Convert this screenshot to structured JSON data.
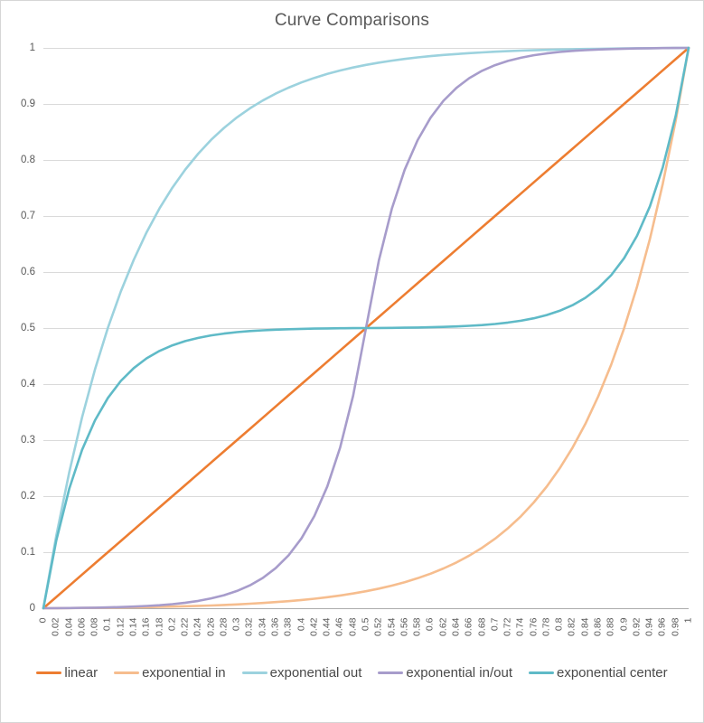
{
  "title": "Curve Comparisons",
  "axis_color": "#acacac",
  "gridline_color": "#dadada",
  "label_color": "#595959",
  "chart_data": {
    "type": "line",
    "title": "Curve Comparisons",
    "xlabel": "",
    "ylabel": "",
    "xlim": [
      0,
      1
    ],
    "ylim": [
      0,
      1
    ],
    "grid": "horizontal",
    "legend_position": "bottom",
    "x": [
      0,
      0.02,
      0.04,
      0.06,
      0.08,
      0.1,
      0.12,
      0.14,
      0.16,
      0.18,
      0.2,
      0.22,
      0.24,
      0.26,
      0.28,
      0.3,
      0.32,
      0.34,
      0.36,
      0.38,
      0.4,
      0.42,
      0.44,
      0.46,
      0.48,
      0.5,
      0.52,
      0.54,
      0.56,
      0.58,
      0.6,
      0.62,
      0.64,
      0.66,
      0.68,
      0.7,
      0.72,
      0.74,
      0.76,
      0.78,
      0.8,
      0.82,
      0.84,
      0.86,
      0.88,
      0.9,
      0.92,
      0.94,
      0.96,
      0.98,
      1
    ],
    "x_tick_labels": [
      "0",
      "0.02",
      "0.04",
      "0.06",
      "0.08",
      "0.1",
      "0.12",
      "0.14",
      "0.16",
      "0.18",
      "0.2",
      "0.22",
      "0.24",
      "0.26",
      "0.28",
      "0.3",
      "0.32",
      "0.34",
      "0.36",
      "0.38",
      "0.4",
      "0.42",
      "0.44",
      "0.46",
      "0.48",
      "0.5",
      "0.52",
      "0.54",
      "0.56",
      "0.58",
      "0.6",
      "0.62",
      "0.64",
      "0.66",
      "0.68",
      "0.7",
      "0.72",
      "0.74",
      "0.76",
      "0.78",
      "0.8",
      "0.82",
      "0.84",
      "0.86",
      "0.88",
      "0.9",
      "0.92",
      "0.94",
      "0.96",
      "0.98",
      "1"
    ],
    "y_tick_labels": [
      "1",
      "0.9",
      "0.8",
      "0.7",
      "0.6",
      "0.5",
      "0.4",
      "0.3",
      "0.2",
      "0.1",
      "0"
    ],
    "series": [
      {
        "name": "linear",
        "color": "#ED7D31",
        "values": [
          0,
          0.02,
          0.04,
          0.06,
          0.08,
          0.1,
          0.12,
          0.14,
          0.16,
          0.18,
          0.2,
          0.22,
          0.24,
          0.26,
          0.28,
          0.3,
          0.32,
          0.34,
          0.36,
          0.38,
          0.4,
          0.42,
          0.44,
          0.46,
          0.48,
          0.5,
          0.52,
          0.54,
          0.56,
          0.58,
          0.6,
          0.62,
          0.64,
          0.66,
          0.68,
          0.7,
          0.72,
          0.74,
          0.76,
          0.78,
          0.8,
          0.82,
          0.84,
          0.86,
          0.88,
          0.9,
          0.92,
          0.94,
          0.96,
          0.98,
          1
        ]
      },
      {
        "name": "exponential in",
        "color": "#F6BD8E",
        "values": [
          0,
          0.0001,
          0.0003,
          0.0005,
          0.0007,
          0.001,
          0.0013,
          0.0016,
          0.002,
          0.0024,
          0.0029,
          0.0035,
          0.0042,
          0.0049,
          0.0058,
          0.0068,
          0.008,
          0.0093,
          0.0109,
          0.0126,
          0.0147,
          0.017,
          0.0197,
          0.0227,
          0.0263,
          0.0303,
          0.035,
          0.0403,
          0.0464,
          0.0535,
          0.0616,
          0.0709,
          0.0816,
          0.0938,
          0.1079,
          0.1241,
          0.1427,
          0.1641,
          0.1887,
          0.2169,
          0.2493,
          0.2865,
          0.3292,
          0.3783,
          0.4347,
          0.4995,
          0.5739,
          0.6594,
          0.7576,
          0.8704,
          1
        ]
      },
      {
        "name": "exponential out",
        "color": "#9CD2DE",
        "values": [
          0,
          0.1296,
          0.2424,
          0.3406,
          0.4261,
          0.5005,
          0.5653,
          0.6217,
          0.6708,
          0.7135,
          0.7507,
          0.7831,
          0.8113,
          0.8359,
          0.8573,
          0.8759,
          0.8921,
          0.9062,
          0.9184,
          0.9291,
          0.9384,
          0.9465,
          0.9536,
          0.9597,
          0.965,
          0.9697,
          0.9737,
          0.9773,
          0.9803,
          0.983,
          0.9853,
          0.9874,
          0.9891,
          0.9907,
          0.992,
          0.9932,
          0.9942,
          0.9951,
          0.9958,
          0.9965,
          0.9971,
          0.9976,
          0.998,
          0.9984,
          0.9987,
          0.999,
          0.9993,
          0.9995,
          0.9997,
          0.9999,
          1
        ]
      },
      {
        "name": "exponential in/out",
        "color": "#A79CCB",
        "values": [
          0,
          0.0002,
          0.0004,
          0.0006,
          0.001,
          0.0015,
          0.0021,
          0.0029,
          0.004,
          0.0054,
          0.0073,
          0.0098,
          0.0131,
          0.0175,
          0.0232,
          0.0308,
          0.0408,
          0.054,
          0.0714,
          0.0943,
          0.1246,
          0.1646,
          0.2174,
          0.287,
          0.3788,
          0.5,
          0.6212,
          0.713,
          0.7826,
          0.8354,
          0.8754,
          0.9057,
          0.9286,
          0.946,
          0.9592,
          0.9692,
          0.9768,
          0.9825,
          0.9869,
          0.9902,
          0.9927,
          0.9946,
          0.996,
          0.9971,
          0.9979,
          0.9985,
          0.999,
          0.9994,
          0.9996,
          0.9998,
          1
        ]
      },
      {
        "name": "exponential center",
        "color": "#5FBAC7",
        "values": [
          0,
          0.1212,
          0.213,
          0.2826,
          0.3354,
          0.3754,
          0.4057,
          0.4286,
          0.446,
          0.4592,
          0.4692,
          0.4768,
          0.4825,
          0.4869,
          0.4902,
          0.4927,
          0.4946,
          0.496,
          0.4971,
          0.4979,
          0.4985,
          0.499,
          0.4994,
          0.4996,
          0.4998,
          0.5,
          0.5002,
          0.5004,
          0.5006,
          0.501,
          0.5015,
          0.5021,
          0.5029,
          0.504,
          0.5054,
          0.5073,
          0.5098,
          0.5131,
          0.5175,
          0.5232,
          0.5308,
          0.5408,
          0.554,
          0.5714,
          0.5943,
          0.6246,
          0.6646,
          0.7174,
          0.787,
          0.8788,
          1
        ]
      }
    ]
  }
}
